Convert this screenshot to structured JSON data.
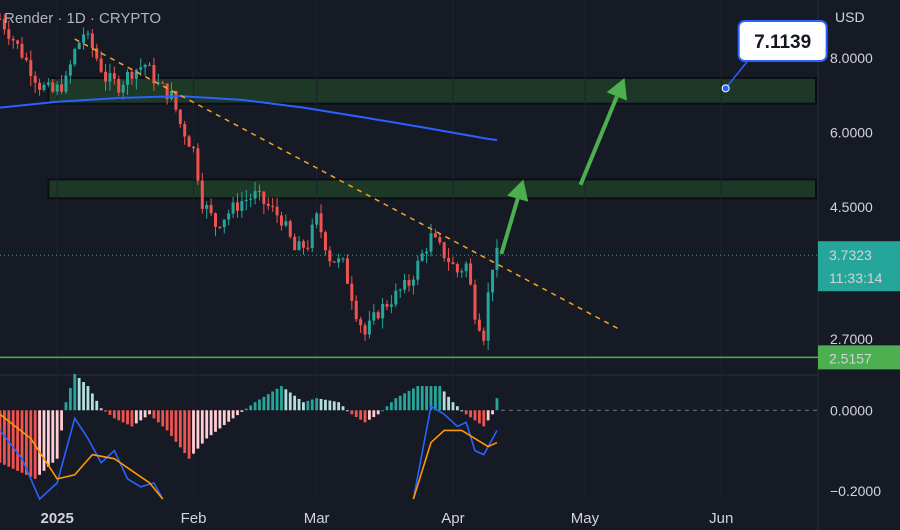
{
  "header": {
    "symbol_label": "Render · 1D · CRYPTO",
    "currency_label": "USD"
  },
  "colors": {
    "background": "#161a25",
    "candle_up": "#26a69a",
    "candle_down": "#ef5350",
    "ma_line": "#2962ff",
    "trendline": "#f7a325",
    "zone_fill": "#1e3a28",
    "zone_border": "#0c0e14",
    "support_line": "#4caf50",
    "arrow": "#4caf50",
    "callout_border": "#2962ff"
  },
  "chart_data": [
    {
      "type": "candlestick",
      "ylim": [
        2.35,
        10.0
      ],
      "y_scale": "log",
      "price_axis_ticks": [
        "8.0000",
        "6.0000",
        "4.5000",
        "2.7000"
      ],
      "x_axis_ticks": [
        "2025",
        "Feb",
        "Mar",
        "Apr",
        "May",
        "Jun"
      ],
      "close_path": [
        [
          "2024-12-19",
          9.3
        ],
        [
          "2024-12-22",
          8.6
        ],
        [
          "2024-12-25",
          7.9
        ],
        [
          "2024-12-28",
          7.2
        ],
        [
          "2024-12-31",
          7.0
        ],
        [
          "2025-01-03",
          7.3
        ],
        [
          "2025-01-05",
          8.2
        ],
        [
          "2025-01-07",
          8.8
        ],
        [
          "2025-01-09",
          8.3
        ],
        [
          "2025-01-12",
          7.4
        ],
        [
          "2025-01-15",
          7.2
        ],
        [
          "2025-01-18",
          7.6
        ],
        [
          "2025-01-21",
          7.8
        ],
        [
          "2025-01-24",
          7.2
        ],
        [
          "2025-01-27",
          6.9
        ],
        [
          "2025-01-29",
          6.2
        ],
        [
          "2025-02-01",
          5.6
        ],
        [
          "2025-02-03",
          4.6
        ],
        [
          "2025-02-06",
          4.2
        ],
        [
          "2025-02-09",
          4.4
        ],
        [
          "2025-02-12",
          4.6
        ],
        [
          "2025-02-15",
          4.7
        ],
        [
          "2025-02-18",
          4.5
        ],
        [
          "2025-02-21",
          4.3
        ],
        [
          "2025-02-24",
          3.8
        ],
        [
          "2025-02-27",
          3.9
        ],
        [
          "2025-03-01",
          4.3
        ],
        [
          "2025-03-04",
          3.7
        ],
        [
          "2025-03-07",
          3.6
        ],
        [
          "2025-03-10",
          3.0
        ],
        [
          "2025-03-12",
          2.75
        ],
        [
          "2025-03-15",
          3.0
        ],
        [
          "2025-03-19",
          3.2
        ],
        [
          "2025-03-22",
          3.35
        ],
        [
          "2025-03-24",
          3.6
        ],
        [
          "2025-03-27",
          4.0
        ],
        [
          "2025-03-30",
          3.75
        ],
        [
          "2025-04-02",
          3.5
        ],
        [
          "2025-04-04",
          3.6
        ],
        [
          "2025-04-06",
          3.0
        ],
        [
          "2025-04-08",
          2.75
        ],
        [
          "2025-04-09",
          3.2
        ],
        [
          "2025-04-10",
          3.6
        ],
        [
          "2025-04-11",
          3.73
        ]
      ],
      "moving_average": [
        [
          "2024-12-19",
          6.6
        ],
        [
          "2025-01-01",
          6.75
        ],
        [
          "2025-01-15",
          6.85
        ],
        [
          "2025-01-29",
          6.9
        ],
        [
          "2025-02-12",
          6.8
        ],
        [
          "2025-02-26",
          6.6
        ],
        [
          "2025-03-12",
          6.35
        ],
        [
          "2025-03-26",
          6.1
        ],
        [
          "2025-04-09",
          5.85
        ],
        [
          "2025-04-11",
          5.82
        ]
      ],
      "trendline": {
        "from": [
          "2025-01-05",
          8.6
        ],
        "to": [
          "2025-05-09",
          2.8
        ]
      },
      "zones": [
        {
          "from": 6.7,
          "to": 7.4
        },
        {
          "from": 4.65,
          "to": 5.0
        }
      ],
      "support_level": 2.5157,
      "last_price": {
        "value": "3.7323",
        "countdown": "11:33:14"
      },
      "support_tag": "2.5157",
      "target_callout": {
        "value": "7.1139",
        "date": "2025-06-02",
        "price": 7.11
      },
      "arrows": [
        {
          "from": [
            "2025-04-12",
            3.75
          ],
          "to": [
            "2025-04-17",
            5.0
          ]
        },
        {
          "from": [
            "2025-04-30",
            4.9
          ],
          "to": [
            "2025-05-10",
            7.4
          ]
        }
      ]
    },
    {
      "type": "histogram",
      "ylim": [
        -0.21,
        0.08
      ],
      "tick_labels": [
        "0.0000",
        "−0.2000"
      ],
      "histogram_path": [
        [
          "2024-12-19",
          -0.13
        ],
        [
          "2024-12-27",
          -0.17
        ],
        [
          "2025-01-01",
          -0.12
        ],
        [
          "2025-01-03",
          0.02
        ],
        [
          "2025-01-05",
          0.09
        ],
        [
          "2025-01-08",
          0.06
        ],
        [
          "2025-01-11",
          0.005
        ],
        [
          "2025-01-14",
          -0.02
        ],
        [
          "2025-01-18",
          -0.04
        ],
        [
          "2025-01-22",
          -0.01
        ],
        [
          "2025-01-26",
          -0.05
        ],
        [
          "2025-01-31",
          -0.12
        ],
        [
          "2025-02-04",
          -0.07
        ],
        [
          "2025-02-10",
          -0.02
        ],
        [
          "2025-02-15",
          0.02
        ],
        [
          "2025-02-21",
          0.06
        ],
        [
          "2025-02-26",
          0.02
        ],
        [
          "2025-03-01",
          0.03
        ],
        [
          "2025-03-06",
          0.02
        ],
        [
          "2025-03-09",
          -0.01
        ],
        [
          "2025-03-12",
          -0.03
        ],
        [
          "2025-03-15",
          -0.01
        ],
        [
          "2025-03-19",
          0.03
        ],
        [
          "2025-03-24",
          0.06
        ],
        [
          "2025-03-29",
          0.06
        ],
        [
          "2025-04-01",
          0.02
        ],
        [
          "2025-04-04",
          -0.01
        ],
        [
          "2025-04-08",
          -0.04
        ],
        [
          "2025-04-10",
          -0.01
        ],
        [
          "2025-04-11",
          0.03
        ]
      ],
      "series": [
        {
          "color": "#2962ff",
          "points": [
            [
              "2024-12-19",
              -0.05
            ],
            [
              "2024-12-24",
              -0.12
            ],
            [
              "2024-12-28",
              -0.22
            ],
            [
              "2025-01-01",
              -0.18
            ],
            [
              "2025-01-05",
              -0.02
            ],
            [
              "2025-01-08",
              -0.07
            ],
            [
              "2025-01-11",
              -0.13
            ],
            [
              "2025-01-14",
              -0.1
            ],
            [
              "2025-01-17",
              -0.17
            ],
            [
              "2025-01-20",
              -0.19
            ],
            [
              "2025-01-23",
              -0.18
            ],
            [
              "2025-01-25",
              -0.22
            ]
          ]
        },
        {
          "color": "#ff9800",
          "points": [
            [
              "2024-12-19",
              -0.01
            ],
            [
              "2024-12-26",
              -0.07
            ],
            [
              "2025-01-01",
              -0.17
            ],
            [
              "2025-01-05",
              -0.16
            ],
            [
              "2025-01-09",
              -0.11
            ],
            [
              "2025-01-14",
              -0.12
            ],
            [
              "2025-01-18",
              -0.15
            ],
            [
              "2025-01-22",
              -0.18
            ],
            [
              "2025-01-25",
              -0.22
            ]
          ]
        },
        {
          "color": "#2962ff",
          "points": [
            [
              "2025-03-23",
              -0.22
            ],
            [
              "2025-03-27",
              0.01
            ],
            [
              "2025-03-30",
              -0.01
            ],
            [
              "2025-04-02",
              -0.04
            ],
            [
              "2025-04-04",
              -0.03
            ],
            [
              "2025-04-06",
              -0.1
            ],
            [
              "2025-04-08",
              -0.11
            ],
            [
              "2025-04-09",
              -0.09
            ],
            [
              "2025-04-11",
              -0.05
            ]
          ]
        },
        {
          "color": "#ff9800",
          "points": [
            [
              "2025-03-23",
              -0.22
            ],
            [
              "2025-03-27",
              -0.08
            ],
            [
              "2025-03-30",
              -0.05
            ],
            [
              "2025-04-03",
              -0.05
            ],
            [
              "2025-04-06",
              -0.07
            ],
            [
              "2025-04-09",
              -0.09
            ],
            [
              "2025-04-11",
              -0.08
            ]
          ]
        }
      ]
    }
  ]
}
